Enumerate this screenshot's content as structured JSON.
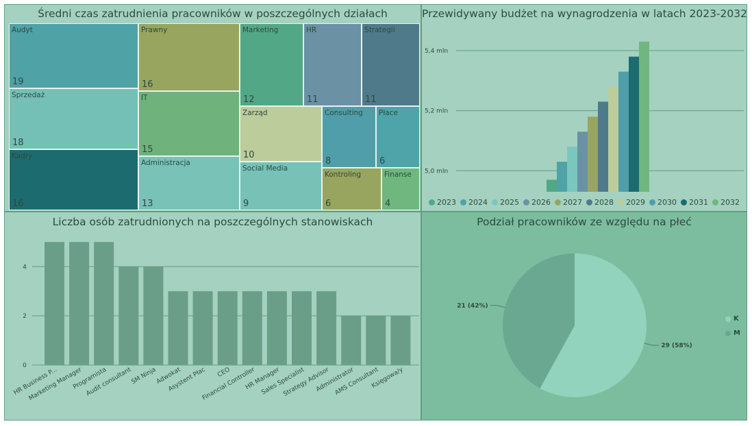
{
  "treemap": {
    "title": "Średni czas zatrudnienia pracowników w poszczególnych działach",
    "chart_data": {
      "type": "treemap",
      "items": [
        {
          "label": "Audyt",
          "value": 19,
          "color": "#4fa2a6"
        },
        {
          "label": "Sprzedaż",
          "value": 18,
          "color": "#74c0b6"
        },
        {
          "label": "Kadry",
          "value": 16,
          "color": "#1c6b6f"
        },
        {
          "label": "Prawny",
          "value": 16,
          "color": "#97a55f"
        },
        {
          "label": "IT",
          "value": 15,
          "color": "#6fb27b"
        },
        {
          "label": "Administracja",
          "value": 13,
          "color": "#78c2b8"
        },
        {
          "label": "Marketing",
          "value": 12,
          "color": "#52a886"
        },
        {
          "label": "HR",
          "value": 11,
          "color": "#6b91a5"
        },
        {
          "label": "Strategii",
          "value": 11,
          "color": "#4f7a89"
        },
        {
          "label": "Zarząd",
          "value": 10,
          "color": "#bccc9b"
        },
        {
          "label": "Social Media",
          "value": 9,
          "color": "#77c1b7"
        },
        {
          "label": "Consulting",
          "value": 8,
          "color": "#509eaa"
        },
        {
          "label": "Płace",
          "value": 6,
          "color": "#4ea4a8"
        },
        {
          "label": "Kontroling",
          "value": 6,
          "color": "#98a55f"
        },
        {
          "label": "Finanse",
          "value": 4,
          "color": "#6fb77f"
        }
      ]
    }
  },
  "budget": {
    "title": "Przewidywany budżet na wynagrodzenia w latach 2023-2032",
    "chart_data": {
      "type": "bar",
      "categories": [
        "2023",
        "2024",
        "2025",
        "2026",
        "2027",
        "2028",
        "2029",
        "2030",
        "2031",
        "2032"
      ],
      "values": [
        4.97,
        5.03,
        5.08,
        5.13,
        5.18,
        5.23,
        5.28,
        5.33,
        5.38,
        5.43
      ],
      "colors": [
        "#52a886",
        "#4fa2a6",
        "#7ac7c0",
        "#6b91a5",
        "#98a55f",
        "#4f7a89",
        "#bccc9b",
        "#509eaa",
        "#1c6b6f",
        "#6fb77f"
      ],
      "ylim": [
        4.93,
        5.45
      ],
      "yticks": [
        5.0,
        5.2,
        5.4
      ],
      "ytick_labels": [
        "5,0 mln",
        "5,2 mln",
        "5,4 mln"
      ],
      "grid": true
    }
  },
  "jobs": {
    "title": "Liczba osób zatrudnionych na poszczególnych stanowiskach",
    "chart_data": {
      "type": "bar",
      "categories": [
        "HR Business P...",
        "Marketing Manager",
        "Programista",
        "Audit consultant",
        "SM Ninja",
        "Adwokat",
        "Asystent Płac",
        "CEO",
        "Financial Controller",
        "HR Manager",
        "Sales Specialist",
        "Strategy Advisor",
        "Administrator",
        "AMS Consultant",
        "Księgowa/y"
      ],
      "values": [
        5,
        5,
        5,
        4,
        4,
        3,
        3,
        3,
        3,
        3,
        3,
        3,
        2,
        2,
        2
      ],
      "ylim": [
        0,
        5.4
      ],
      "yticks": [
        0,
        2,
        4
      ],
      "ytick_labels": [
        "0",
        "2",
        "4"
      ],
      "bar_color": "#6a9e89",
      "grid": true
    }
  },
  "gender": {
    "title": "Podział pracowników ze względu na płeć",
    "chart_data": {
      "type": "pie",
      "slices": [
        {
          "label": "K",
          "value": 29,
          "data_label": "29 (58%)",
          "color": "#92d3bd"
        },
        {
          "label": "M",
          "value": 21,
          "data_label": "21 (42%)",
          "color": "#6aa891"
        }
      ]
    }
  }
}
